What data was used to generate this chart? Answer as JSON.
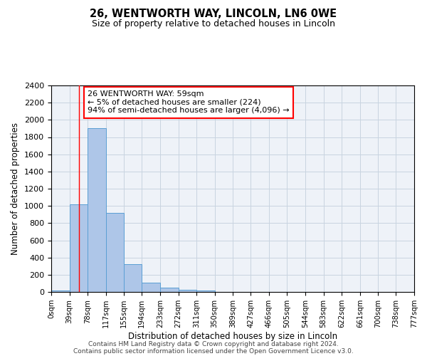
{
  "title": "26, WENTWORTH WAY, LINCOLN, LN6 0WE",
  "subtitle": "Size of property relative to detached houses in Lincoln",
  "xlabel": "Distribution of detached houses by size in Lincoln",
  "ylabel": "Number of detached properties",
  "bar_values": [
    20,
    1020,
    1900,
    920,
    320,
    105,
    50,
    25,
    15,
    0,
    0,
    0,
    0,
    0,
    0,
    0,
    0,
    0,
    0,
    0
  ],
  "bin_edges": [
    0,
    39,
    78,
    117,
    155,
    194,
    233,
    272,
    311,
    350,
    389,
    427,
    466,
    505,
    544,
    583,
    622,
    661,
    700,
    738,
    777
  ],
  "tick_labels": [
    "0sqm",
    "39sqm",
    "78sqm",
    "117sqm",
    "155sqm",
    "194sqm",
    "233sqm",
    "272sqm",
    "311sqm",
    "350sqm",
    "389sqm",
    "427sqm",
    "466sqm",
    "505sqm",
    "544sqm",
    "583sqm",
    "622sqm",
    "661sqm",
    "700sqm",
    "738sqm",
    "777sqm"
  ],
  "bar_color": "#aec6e8",
  "bar_edge_color": "#5a9fd4",
  "grid_color": "#c8d4e0",
  "background_color": "#eef2f8",
  "red_line_x": 59,
  "annotation_line1": "26 WENTWORTH WAY: 59sqm",
  "annotation_line2": "← 5% of detached houses are smaller (224)",
  "annotation_line3": "94% of semi-detached houses are larger (4,096) →",
  "ylim": [
    0,
    2400
  ],
  "yticks": [
    0,
    200,
    400,
    600,
    800,
    1000,
    1200,
    1400,
    1600,
    1800,
    2000,
    2200,
    2400
  ],
  "footer_line1": "Contains HM Land Registry data © Crown copyright and database right 2024.",
  "footer_line2": "Contains public sector information licensed under the Open Government Licence v3.0."
}
